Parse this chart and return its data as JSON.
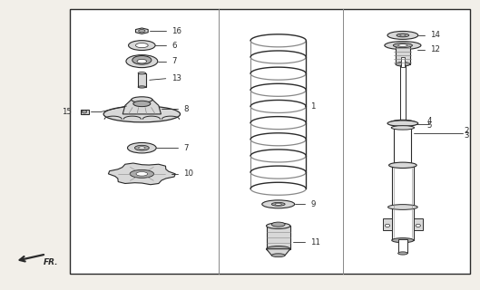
{
  "bg_color": "#f2efe9",
  "box_bg": "#ffffff",
  "lc": "#2a2a2a",
  "lc_light": "#888888",
  "fig_width": 5.29,
  "fig_height": 3.2,
  "dpi": 100,
  "border": [
    0.145,
    0.055,
    0.835,
    0.915
  ],
  "dividers": [
    0.455,
    0.715
  ]
}
